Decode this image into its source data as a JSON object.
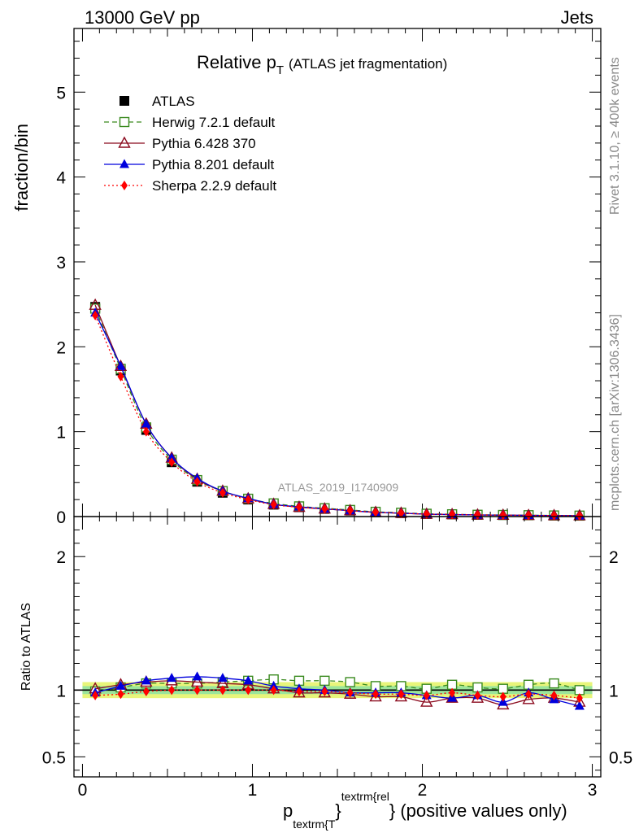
{
  "header": {
    "left": "13000 GeV pp",
    "right": "Jets"
  },
  "side_labels": {
    "rivet": "Rivet 3.1.10, ≥ 400k events",
    "mcplots": "mcplots.cern.ch [arXiv:1306.3436]"
  },
  "watermark": "ATLAS_2019_I1740909",
  "title": {
    "main": "Relative p",
    "sub": "T",
    "rest": "(ATLAS jet fragmentation)"
  },
  "xlabel": {
    "p": "p",
    "sub": "textrm{T",
    "mid": "}",
    "sup": "textrm{rel",
    "close": "}",
    "rest": " (positive values only)"
  },
  "colors": {
    "atlas": "#000000",
    "herwig": "#3a8a1f",
    "pythia6": "#8b0a1e",
    "pythia8": "#0000dd",
    "sherpa": "#ff0000",
    "band_outer": "#e8f57a",
    "band_inner": "#9be59b"
  },
  "chart_data": [
    {
      "type": "line",
      "ylabel": "fraction/bin",
      "xlim": [
        -0.05,
        3.05
      ],
      "ylim": [
        0,
        5.75
      ],
      "yticks": [
        {
          "v": 0,
          "label": "0"
        },
        {
          "v": 1,
          "label": "1"
        },
        {
          "v": 2,
          "label": "2"
        },
        {
          "v": 3,
          "label": "3"
        },
        {
          "v": 4,
          "label": "4"
        },
        {
          "v": 5,
          "label": "5"
        }
      ],
      "x": [
        0.075,
        0.225,
        0.375,
        0.525,
        0.675,
        0.825,
        0.975,
        1.125,
        1.275,
        1.425,
        1.575,
        1.725,
        1.875,
        2.025,
        2.175,
        2.325,
        2.475,
        2.625,
        2.775,
        2.925
      ],
      "series": [
        {
          "name": "ATLAS",
          "key": "atlas",
          "values": [
            2.47,
            1.72,
            1.02,
            0.64,
            0.41,
            0.28,
            0.2,
            0.14,
            0.11,
            0.09,
            0.07,
            0.05,
            0.04,
            0.03,
            0.025,
            0.02,
            0.018,
            0.015,
            0.012,
            0.01
          ]
        },
        {
          "name": "Herwig 7.2.1 default",
          "key": "herwig",
          "values": [
            2.45,
            1.74,
            1.05,
            0.67,
            0.43,
            0.3,
            0.21,
            0.155,
            0.12,
            0.098,
            0.078,
            0.056,
            0.045,
            0.033,
            0.027,
            0.021,
            0.019,
            0.016,
            0.013,
            0.011
          ]
        },
        {
          "name": "Pythia 6.428 370",
          "key": "pythia6",
          "values": [
            2.49,
            1.77,
            1.09,
            0.69,
            0.44,
            0.3,
            0.21,
            0.145,
            0.11,
            0.09,
            0.07,
            0.05,
            0.04,
            0.028,
            0.024,
            0.019,
            0.016,
            0.014,
            0.012,
            0.01
          ]
        },
        {
          "name": "Pythia 8.201 default",
          "key": "pythia8",
          "values": [
            2.4,
            1.77,
            1.09,
            0.69,
            0.45,
            0.3,
            0.215,
            0.145,
            0.115,
            0.09,
            0.07,
            0.05,
            0.04,
            0.029,
            0.024,
            0.019,
            0.017,
            0.014,
            0.012,
            0.009
          ]
        },
        {
          "name": "Sherpa 2.2.9 default",
          "key": "sherpa",
          "values": [
            2.37,
            1.65,
            1.0,
            0.64,
            0.41,
            0.28,
            0.2,
            0.14,
            0.11,
            0.09,
            0.07,
            0.05,
            0.04,
            0.029,
            0.025,
            0.02,
            0.017,
            0.014,
            0.012,
            0.009
          ]
        }
      ]
    },
    {
      "type": "line",
      "ylabel": "Ratio to ATLAS",
      "xlim": [
        -0.05,
        3.05
      ],
      "ylim": [
        0.35,
        2.3
      ],
      "yticks": [
        {
          "v": 0.5,
          "label": "0.5"
        },
        {
          "v": 1,
          "label": "1"
        },
        {
          "v": 2,
          "label": "2"
        }
      ],
      "xticks": [
        {
          "v": 0,
          "label": "0"
        },
        {
          "v": 1,
          "label": "1"
        },
        {
          "v": 2,
          "label": "2"
        },
        {
          "v": 3,
          "label": "3"
        }
      ],
      "x": [
        0.075,
        0.225,
        0.375,
        0.525,
        0.675,
        0.825,
        0.975,
        1.125,
        1.275,
        1.425,
        1.575,
        1.725,
        1.875,
        2.025,
        2.175,
        2.325,
        2.475,
        2.625,
        2.775,
        2.925
      ],
      "band": {
        "outer": [
          0.94,
          1.06
        ],
        "inner": [
          0.97,
          1.03
        ]
      },
      "series": [
        {
          "name": "Herwig 7.2.1 default",
          "key": "herwig",
          "values": [
            0.99,
            1.02,
            1.05,
            1.05,
            1.05,
            1.06,
            1.07,
            1.08,
            1.07,
            1.07,
            1.06,
            1.03,
            1.03,
            1.01,
            1.04,
            1.02,
            1.01,
            1.04,
            1.05,
            1.0
          ]
        },
        {
          "name": "Pythia 6.428 370",
          "key": "pythia6",
          "values": [
            1.01,
            1.04,
            1.06,
            1.07,
            1.06,
            1.05,
            1.04,
            1.01,
            0.98,
            0.98,
            0.97,
            0.95,
            0.95,
            0.91,
            0.94,
            0.94,
            0.89,
            0.93,
            0.94,
            0.91
          ]
        },
        {
          "name": "Pythia 8.201 default",
          "key": "pythia8",
          "values": [
            0.98,
            1.03,
            1.07,
            1.09,
            1.1,
            1.09,
            1.07,
            1.03,
            1.01,
            1.0,
            0.98,
            0.98,
            0.98,
            0.96,
            0.94,
            0.96,
            0.91,
            0.98,
            0.93,
            0.88
          ]
        },
        {
          "name": "Sherpa 2.2.9 default",
          "key": "sherpa",
          "values": [
            0.96,
            0.97,
            0.99,
            1.0,
            1.0,
            1.0,
            1.0,
            1.0,
            0.99,
            0.99,
            0.98,
            0.97,
            0.97,
            0.96,
            0.98,
            0.96,
            0.95,
            0.97,
            0.96,
            0.94
          ]
        }
      ]
    }
  ]
}
